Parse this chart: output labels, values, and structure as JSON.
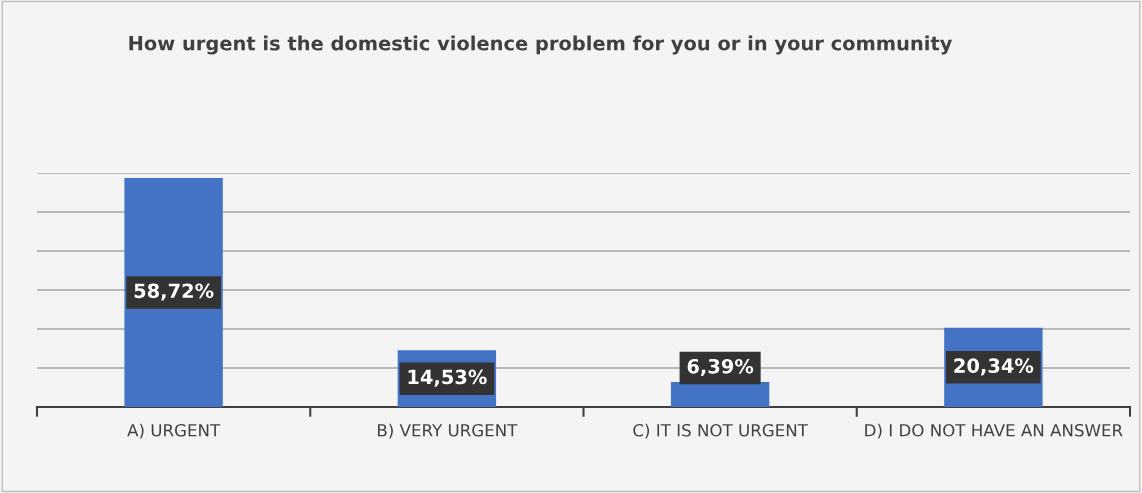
{
  "chart_data": {
    "type": "bar",
    "title": "How urgent is the domestic violence problem for you or in your community",
    "categories": [
      "A) URGENT",
      "B) VERY URGENT",
      "C) IT IS NOT URGENT",
      "D) I DO NOT HAVE AN ANSWER"
    ],
    "values": [
      58.72,
      14.53,
      6.39,
      20.34
    ],
    "value_labels": [
      "58,72%",
      "14,53%",
      "6,39%",
      "20,34%"
    ],
    "color": "#4472c4",
    "ylim": [
      0,
      60
    ],
    "yticks": [
      {
        "value": 0,
        "label": null
      },
      {
        "value": 10,
        "label": null
      },
      {
        "value": 20,
        "label": null
      },
      {
        "value": 30,
        "label": null
      },
      {
        "value": 40,
        "label": null
      },
      {
        "value": 50,
        "label": null
      },
      {
        "value": 60,
        "label": null
      }
    ],
    "grid": "y",
    "tick_labels": "x"
  }
}
